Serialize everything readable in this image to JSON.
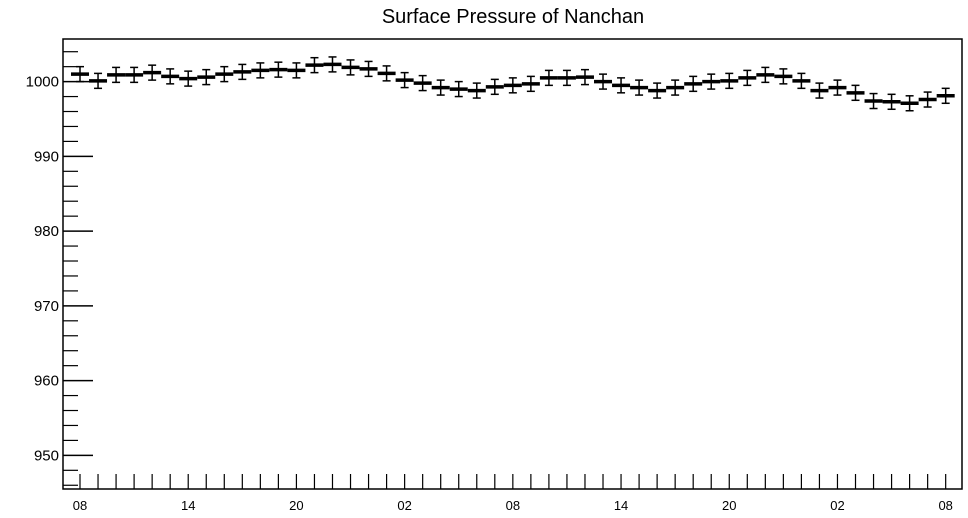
{
  "chart_data": {
    "type": "scatter",
    "title": "Surface Pressure of Nanchan",
    "xlabel": "",
    "ylabel": "",
    "ylim": [
      945.5,
      1005.7
    ],
    "y_ticks": [
      950,
      960,
      970,
      980,
      990,
      1000
    ],
    "x_ticks": [
      "08",
      "14",
      "20",
      "02",
      "08",
      "14",
      "20",
      "02",
      "08"
    ],
    "x_tick_every_points": 6,
    "error_bar": 1.0,
    "grid": false,
    "points": [
      1001.0,
      1000.1,
      1000.9,
      1000.9,
      1001.2,
      1000.7,
      1000.4,
      1000.6,
      1001.0,
      1001.3,
      1001.5,
      1001.6,
      1001.5,
      1002.2,
      1002.3,
      1001.9,
      1001.7,
      1001.1,
      1000.2,
      999.8,
      999.2,
      999.0,
      998.8,
      999.3,
      999.5,
      999.7,
      1000.5,
      1000.5,
      1000.6,
      1000.0,
      999.5,
      999.2,
      998.8,
      999.2,
      999.7,
      1000.0,
      1000.1,
      1000.5,
      1000.9,
      1000.7,
      1000.1,
      998.8,
      999.2,
      998.5,
      997.4,
      997.3,
      997.1,
      997.6,
      998.1
    ]
  }
}
